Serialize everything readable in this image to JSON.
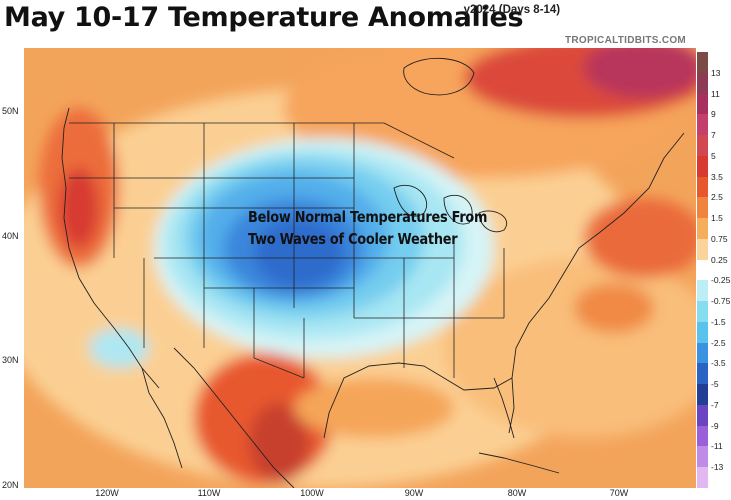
{
  "header": {
    "title": "May 10-17 Temperature Anomalies",
    "subtitle_clipped_char": "y",
    "subtitle": "2024 (Days 8-14)"
  },
  "watermark": "TROPICALTIDBITS.COM",
  "annotation": {
    "line1": "Below Normal Temperatures From",
    "line2": "Two Waves of Cooler Weather"
  },
  "axes": {
    "lat_labels": [
      "50N",
      "40N",
      "30N",
      "20N"
    ],
    "lon_labels": [
      "120W",
      "110W",
      "100W",
      "90W",
      "80W",
      "70W"
    ]
  },
  "legend": {
    "labels": [
      "13",
      "11",
      "9",
      "7",
      "5",
      "3.5",
      "2.5",
      "1.5",
      "0.75",
      "0.25",
      "-0.25",
      "-0.75",
      "-1.5",
      "-2.5",
      "-3.5",
      "-5",
      "-7",
      "-9",
      "-11",
      "-13"
    ],
    "colors": [
      "#7d4b46",
      "#8e3b55",
      "#a8305e",
      "#c2406b",
      "#d14850",
      "#d83a30",
      "#e8582f",
      "#f0833e",
      "#f6ad5c",
      "#fad49a",
      "#ffffff",
      "#bdeef6",
      "#86ddf0",
      "#59c3ee",
      "#3a92e0",
      "#2b63c4",
      "#203f95",
      "#6b44c2",
      "#9b5fd9",
      "#c08be6",
      "#e1b8f1"
    ]
  },
  "colors": {
    "ocean_warm": "#f6ad5c",
    "land_warm": "#fad49a",
    "cold_core": "#2b63c4",
    "hot_core": "#d83a30"
  }
}
